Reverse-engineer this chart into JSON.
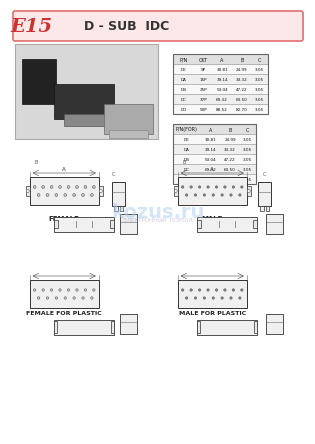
{
  "title": "D - SUB  IDC",
  "series_label": "E15",
  "bg_color": "#ffffff",
  "header_bg": "#fce8e8",
  "header_border": "#e07070",
  "female_label": "FEMALE",
  "male_label": "MALE",
  "female_plastic_label": "FEMALE FOR PLASTIC",
  "male_plastic_label": "MALE FOR PLASTIC",
  "watermark": "kozus.ru",
  "watermark2": "ЭЛЕКТРОННЫЙ  ПОРТАЛ",
  "table1_headers": [
    "P/N",
    "CKT",
    "A",
    "B",
    "C"
  ],
  "table1_rows": [
    [
      "DE",
      "9P",
      "30.81",
      "24.99",
      "3.05"
    ],
    [
      "DA",
      "15P",
      "39.14",
      "33.32",
      "3.05"
    ],
    [
      "DB",
      "25P",
      "53.04",
      "47.22",
      "3.05"
    ],
    [
      "DC",
      "37P",
      "69.32",
      "63.50",
      "3.05"
    ],
    [
      "DD",
      "50P",
      "88.52",
      "82.70",
      "3.05"
    ]
  ],
  "table2_headers": [
    "P/N(FOR)",
    "A",
    "B",
    "C"
  ],
  "table2_rows": [
    [
      "DE",
      "30.81",
      "24.99",
      "3.05"
    ],
    [
      "DA",
      "39.14",
      "33.32",
      "3.05"
    ],
    [
      "DB",
      "53.04",
      "47.22",
      "3.05"
    ],
    [
      "DC",
      "69.32",
      "63.50",
      "3.05"
    ],
    [
      "DD",
      "88.52",
      "82.70",
      "3.05"
    ]
  ]
}
